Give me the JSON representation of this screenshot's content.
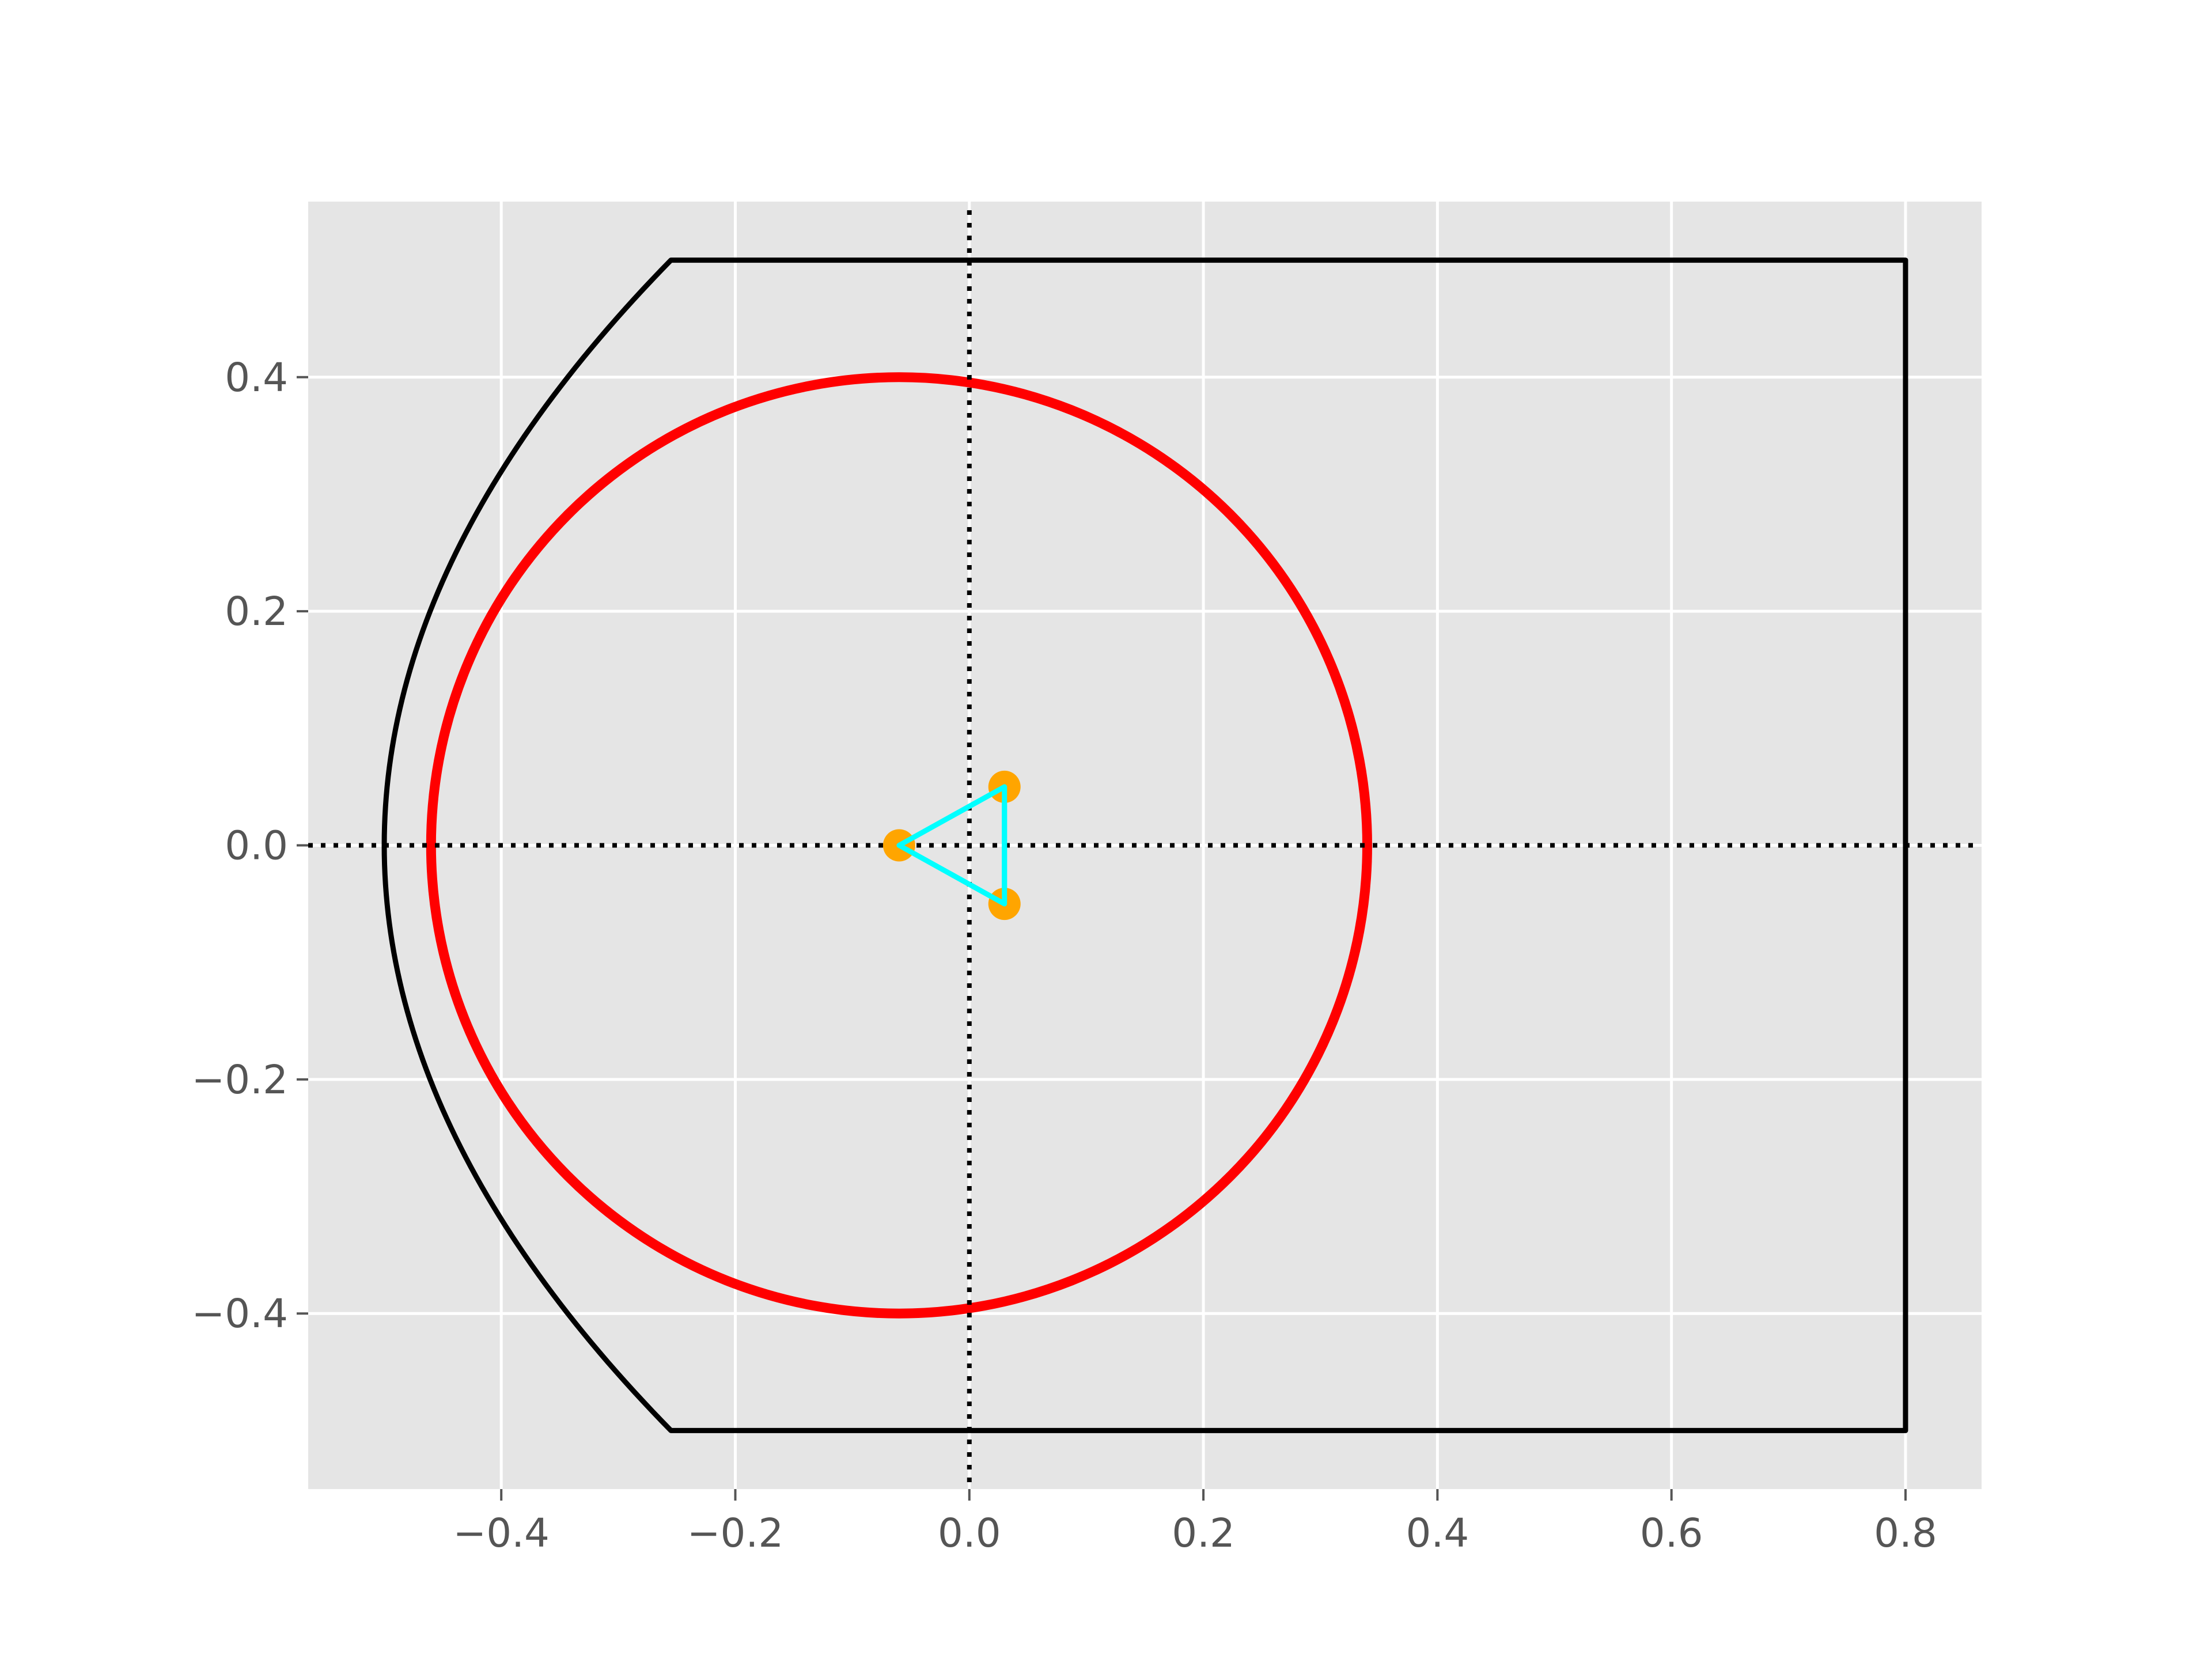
{
  "chart_data": {
    "type": "line",
    "title": "",
    "xlabel": "",
    "ylabel": "",
    "xlim": [
      -0.565,
      0.865
    ],
    "ylim": [
      -0.55,
      0.55
    ],
    "grid": true,
    "legend": "none",
    "colors": {
      "plot_background": "#e5e5e5",
      "grid": "#ffffff",
      "boundary": "#000000",
      "axes_lines": "#000000",
      "circle": "#ff0000",
      "triangle": "#00ffff",
      "points": "#ffa500",
      "tick_label": "#555555"
    },
    "x_ticks": [
      {
        "value": -0.4,
        "label": "−0.4"
      },
      {
        "value": -0.2,
        "label": "−0.2"
      },
      {
        "value": 0.0,
        "label": "0.0"
      },
      {
        "value": 0.2,
        "label": "0.2"
      },
      {
        "value": 0.4,
        "label": "0.4"
      },
      {
        "value": 0.6,
        "label": "0.6"
      },
      {
        "value": 0.8,
        "label": "0.8"
      }
    ],
    "y_ticks": [
      {
        "value": -0.4,
        "label": "−0.4"
      },
      {
        "value": -0.2,
        "label": "−0.2"
      },
      {
        "value": 0.0,
        "label": "0.0"
      },
      {
        "value": 0.2,
        "label": "0.2"
      },
      {
        "value": 0.4,
        "label": "0.4"
      }
    ],
    "boundary": {
      "top_y": 0.5,
      "bottom_y": -0.5,
      "right_x": 0.8,
      "straight_start_x": -0.243,
      "curve": {
        "vertex_x": -0.5,
        "vertex_y": 0.0,
        "end_x": -0.255,
        "end_y": 0.5
      }
    },
    "circle": {
      "center": [
        -0.06,
        0.0
      ],
      "radius": 0.4
    },
    "triangle_points": [
      [
        -0.06,
        0.0
      ],
      [
        0.03,
        0.05
      ],
      [
        0.03,
        -0.05
      ]
    ],
    "reference_lines": {
      "x": 0.0,
      "y": 0.0,
      "style": "dotted"
    }
  }
}
